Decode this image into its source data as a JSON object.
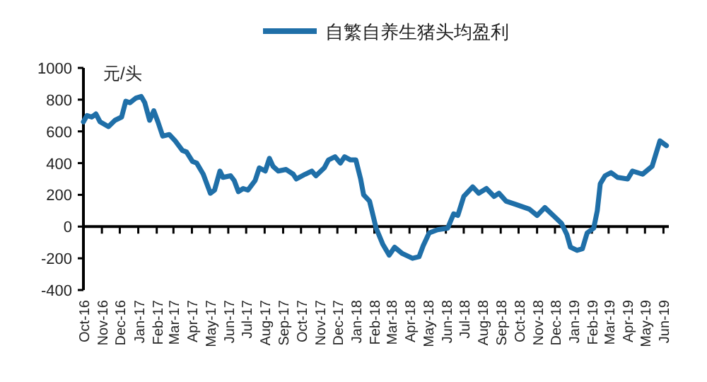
{
  "chart_data": {
    "type": "line",
    "ylabel": "元/头",
    "legend": "top",
    "xlim": [
      "2016-10-01",
      "2019-06-10"
    ],
    "ylim": [
      -400,
      1000
    ],
    "yticks": [
      -400,
      -200,
      0,
      200,
      400,
      600,
      800,
      1000
    ],
    "xticks": [
      {
        "value": "2016-10",
        "label": "Oct-16"
      },
      {
        "value": "2016-11",
        "label": "Nov-16"
      },
      {
        "value": "2016-12",
        "label": "Dec-16"
      },
      {
        "value": "2017-01",
        "label": "Jan-17"
      },
      {
        "value": "2017-02",
        "label": "Feb-17"
      },
      {
        "value": "2017-03",
        "label": "Mar-17"
      },
      {
        "value": "2017-04",
        "label": "Apr-17"
      },
      {
        "value": "2017-05",
        "label": "May-17"
      },
      {
        "value": "2017-06",
        "label": "Jun-17"
      },
      {
        "value": "2017-07",
        "label": "Jul-17"
      },
      {
        "value": "2017-08",
        "label": "Aug-17"
      },
      {
        "value": "2017-09",
        "label": "Sep-17"
      },
      {
        "value": "2017-10",
        "label": "Oct-17"
      },
      {
        "value": "2017-11",
        "label": "Nov-17"
      },
      {
        "value": "2017-12",
        "label": "Dec-17"
      },
      {
        "value": "2018-01",
        "label": "Jan-18"
      },
      {
        "value": "2018-02",
        "label": "Feb-18"
      },
      {
        "value": "2018-03",
        "label": "Mar-18"
      },
      {
        "value": "2018-04",
        "label": "Apr-18"
      },
      {
        "value": "2018-05",
        "label": "May-18"
      },
      {
        "value": "2018-06",
        "label": "Jun-18"
      },
      {
        "value": "2018-07",
        "label": "Jul-18"
      },
      {
        "value": "2018-08",
        "label": "Aug-18"
      },
      {
        "value": "2018-09",
        "label": "Sep-18"
      },
      {
        "value": "2018-10",
        "label": "Oct-18"
      },
      {
        "value": "2018-11",
        "label": "Nov-18"
      },
      {
        "value": "2018-12",
        "label": "Dec-18"
      },
      {
        "value": "2019-01",
        "label": "Jan-19"
      },
      {
        "value": "2019-02",
        "label": "Feb-19"
      },
      {
        "value": "2019-03",
        "label": "Mar-19"
      },
      {
        "value": "2019-04",
        "label": "Apr-19"
      },
      {
        "value": "2019-05",
        "label": "May-19"
      },
      {
        "value": "2019-06",
        "label": "Jun-19"
      }
    ],
    "series": [
      {
        "name": "自繁自养生猪头均盈利",
        "color": "#1f6fa8",
        "line_style": "solid",
        "x": [
          "2016-10-01",
          "2016-10-07",
          "2016-10-15",
          "2016-10-22",
          "2016-10-29",
          "2016-11-12",
          "2016-11-23",
          "2016-12-04",
          "2016-12-11",
          "2016-12-18",
          "2016-12-28",
          "2017-01-06",
          "2017-01-12",
          "2017-01-20",
          "2017-01-27",
          "2017-02-03",
          "2017-02-11",
          "2017-02-22",
          "2017-03-04",
          "2017-03-16",
          "2017-03-23",
          "2017-04-02",
          "2017-04-09",
          "2017-04-20",
          "2017-05-02",
          "2017-05-09",
          "2017-05-18",
          "2017-05-23",
          "2017-06-05",
          "2017-06-11",
          "2017-06-18",
          "2017-06-26",
          "2017-07-04",
          "2017-07-16",
          "2017-07-23",
          "2017-08-02",
          "2017-08-09",
          "2017-08-15",
          "2017-08-24",
          "2017-09-06",
          "2017-09-18",
          "2017-09-23",
          "2017-10-08",
          "2017-10-19",
          "2017-10-26",
          "2017-11-09",
          "2017-11-16",
          "2017-11-27",
          "2017-12-06",
          "2017-12-13",
          "2017-12-23",
          "2018-01-01",
          "2018-01-09",
          "2018-01-14",
          "2018-01-24",
          "2018-02-04",
          "2018-02-15",
          "2018-02-26",
          "2018-03-07",
          "2018-03-20",
          "2018-04-06",
          "2018-04-17",
          "2018-04-24",
          "2018-05-04",
          "2018-05-18",
          "2018-06-04",
          "2018-06-14",
          "2018-06-21",
          "2018-07-01",
          "2018-07-16",
          "2018-07-26",
          "2018-08-08",
          "2018-08-21",
          "2018-08-29",
          "2018-09-10",
          "2018-09-26",
          "2018-10-19",
          "2018-11-01",
          "2018-11-14",
          "2018-11-28",
          "2018-12-12",
          "2018-12-21",
          "2018-12-27",
          "2019-01-07",
          "2019-01-16",
          "2019-01-24",
          "2019-02-04",
          "2019-02-10",
          "2019-02-15",
          "2019-02-23",
          "2019-03-05",
          "2019-03-16",
          "2019-04-02",
          "2019-04-10",
          "2019-04-27",
          "2019-05-13",
          "2019-05-26",
          "2019-06-06"
        ],
        "values": [
          660,
          700,
          690,
          710,
          660,
          630,
          670,
          690,
          790,
          780,
          810,
          820,
          780,
          670,
          730,
          660,
          570,
          580,
          540,
          480,
          470,
          410,
          400,
          330,
          210,
          230,
          350,
          310,
          320,
          290,
          220,
          240,
          230,
          290,
          370,
          350,
          430,
          380,
          350,
          360,
          330,
          300,
          330,
          350,
          320,
          370,
          420,
          440,
          400,
          440,
          420,
          420,
          300,
          200,
          160,
          -10,
          -110,
          -180,
          -130,
          -170,
          -200,
          -190,
          -120,
          -40,
          -20,
          -10,
          80,
          70,
          190,
          250,
          210,
          240,
          190,
          210,
          160,
          140,
          110,
          70,
          120,
          70,
          20,
          -50,
          -130,
          -150,
          -140,
          -40,
          -10,
          100,
          270,
          320,
          340,
          310,
          300,
          350,
          330,
          380,
          540,
          510
        ]
      }
    ]
  }
}
